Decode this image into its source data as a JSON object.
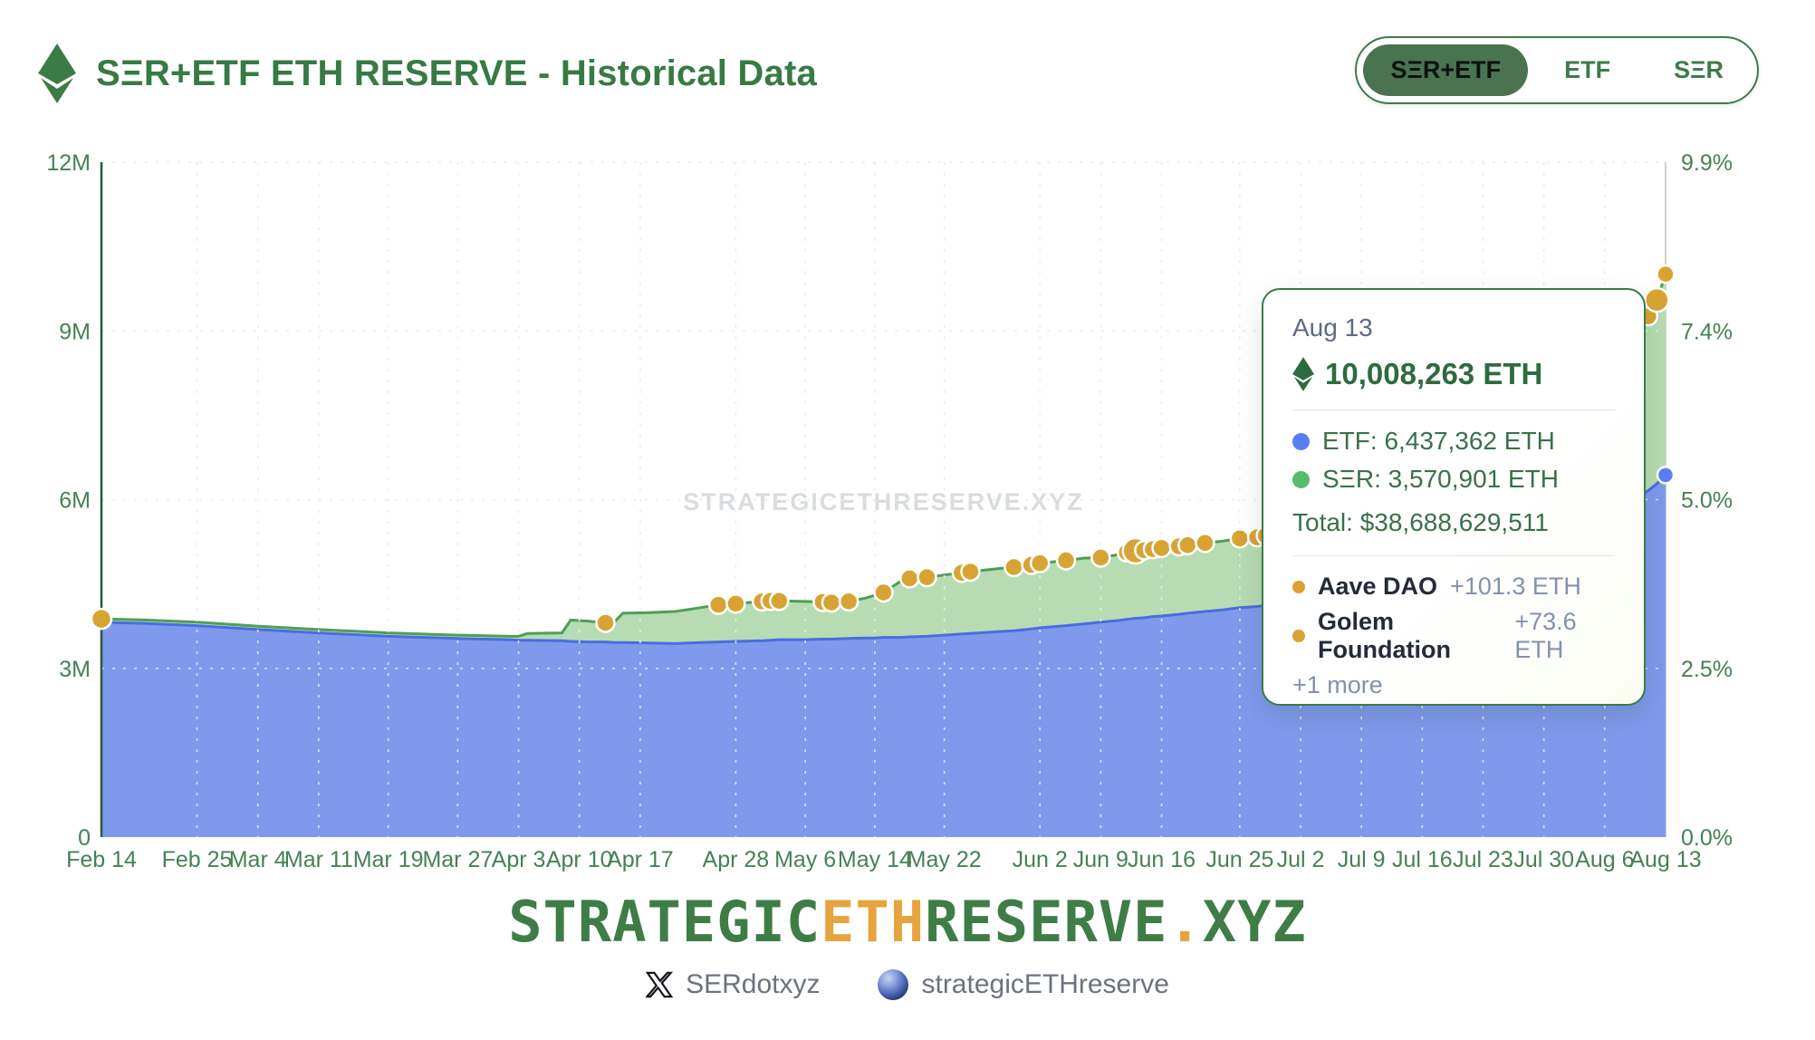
{
  "header": {
    "title": "SΞR+ETF ETH RESERVE - Historical Data",
    "toggle": {
      "options": [
        {
          "label": "SΞR+ETF",
          "selected": true
        },
        {
          "label": "ETF",
          "selected": false
        },
        {
          "label": "SΞR",
          "selected": false
        }
      ]
    }
  },
  "chart_data": {
    "type": "area",
    "stacked": true,
    "title": "SΞR+ETF ETH RESERVE - Historical Data",
    "watermark": "STRATEGICETHRESERVE.XYZ",
    "y_left_ticks": [
      {
        "value": 0,
        "label": "0"
      },
      {
        "value": 3,
        "label": "3M"
      },
      {
        "value": 6,
        "label": "6M"
      },
      {
        "value": 9,
        "label": "9M"
      },
      {
        "value": 12,
        "label": "12M"
      }
    ],
    "y_right_ticks": [
      {
        "value": 0,
        "label": "0.0%"
      },
      {
        "value": 3,
        "label": "2.5%"
      },
      {
        "value": 6,
        "label": "5.0%"
      },
      {
        "value": 9,
        "label": "7.4%"
      },
      {
        "value": 12,
        "label": "9.9%"
      }
    ],
    "ylim_millions": [
      0,
      12
    ],
    "x_ticks": [
      {
        "day": 0,
        "label": "Feb 14"
      },
      {
        "day": 11,
        "label": "Feb 25"
      },
      {
        "day": 18,
        "label": "Mar 4"
      },
      {
        "day": 25,
        "label": "Mar 11"
      },
      {
        "day": 33,
        "label": "Mar 19"
      },
      {
        "day": 41,
        "label": "Mar 27"
      },
      {
        "day": 48,
        "label": "Apr 3"
      },
      {
        "day": 55,
        "label": "Apr 10"
      },
      {
        "day": 62,
        "label": "Apr 17"
      },
      {
        "day": 73,
        "label": "Apr 28"
      },
      {
        "day": 81,
        "label": "May 6"
      },
      {
        "day": 89,
        "label": "May 14"
      },
      {
        "day": 97,
        "label": "May 22"
      },
      {
        "day": 108,
        "label": "Jun 2"
      },
      {
        "day": 115,
        "label": "Jun 9"
      },
      {
        "day": 122,
        "label": "Jun 16"
      },
      {
        "day": 131,
        "label": "Jun 25"
      },
      {
        "day": 138,
        "label": "Jul 2"
      },
      {
        "day": 145,
        "label": "Jul 9"
      },
      {
        "day": 152,
        "label": "Jul 16"
      },
      {
        "day": 159,
        "label": "Jul 23"
      },
      {
        "day": 166,
        "label": "Jul 30"
      },
      {
        "day": 173,
        "label": "Aug 6"
      },
      {
        "day": 180,
        "label": "Aug 13"
      }
    ],
    "series": [
      {
        "name": "ETF",
        "fill": "#7f9aec",
        "line": "#4a6de0",
        "marker": "#5b7df2"
      },
      {
        "name": "SΞR",
        "fill": "#b7dcb3",
        "line": "#4f9e58",
        "marker": "#55bd6c"
      }
    ],
    "event_marker_color": "#d7a433",
    "points": [
      {
        "day": 0,
        "etf": 3.82,
        "ser": 0.06,
        "dot": true,
        "r": 11
      },
      {
        "day": 5,
        "etf": 3.8,
        "ser": 0.06
      },
      {
        "day": 11,
        "etf": 3.76,
        "ser": 0.06
      },
      {
        "day": 18,
        "etf": 3.69,
        "ser": 0.06
      },
      {
        "day": 25,
        "etf": 3.63,
        "ser": 0.06
      },
      {
        "day": 33,
        "etf": 3.57,
        "ser": 0.06
      },
      {
        "day": 41,
        "etf": 3.53,
        "ser": 0.06
      },
      {
        "day": 47,
        "etf": 3.51,
        "ser": 0.06
      },
      {
        "day": 48,
        "etf": 3.5,
        "ser": 0.07
      },
      {
        "day": 49,
        "etf": 3.5,
        "ser": 0.12
      },
      {
        "day": 53,
        "etf": 3.49,
        "ser": 0.14
      },
      {
        "day": 54,
        "etf": 3.48,
        "ser": 0.38
      },
      {
        "day": 56,
        "etf": 3.47,
        "ser": 0.37
      },
      {
        "day": 58,
        "etf": 3.47,
        "ser": 0.34,
        "dot": true
      },
      {
        "day": 59,
        "etf": 3.46,
        "ser": 0.36
      },
      {
        "day": 60,
        "etf": 3.46,
        "ser": 0.52
      },
      {
        "day": 63,
        "etf": 3.45,
        "ser": 0.54
      },
      {
        "day": 66,
        "etf": 3.44,
        "ser": 0.57
      },
      {
        "day": 69,
        "etf": 3.46,
        "ser": 0.62
      },
      {
        "day": 71,
        "etf": 3.47,
        "ser": 0.66,
        "dot": true
      },
      {
        "day": 73,
        "etf": 3.48,
        "ser": 0.67,
        "dot": true
      },
      {
        "day": 76,
        "etf": 3.49,
        "ser": 0.7,
        "dot": true
      },
      {
        "day": 77,
        "etf": 3.5,
        "ser": 0.7,
        "dot": true
      },
      {
        "day": 78,
        "etf": 3.51,
        "ser": 0.69,
        "dot": true
      },
      {
        "day": 81,
        "etf": 3.51,
        "ser": 0.68
      },
      {
        "day": 83,
        "etf": 3.52,
        "ser": 0.66,
        "dot": true
      },
      {
        "day": 84,
        "etf": 3.52,
        "ser": 0.65,
        "dot": true
      },
      {
        "day": 86,
        "etf": 3.53,
        "ser": 0.66,
        "dot": true
      },
      {
        "day": 88,
        "etf": 3.54,
        "ser": 0.71
      },
      {
        "day": 89,
        "etf": 3.54,
        "ser": 0.76
      },
      {
        "day": 90,
        "etf": 3.55,
        "ser": 0.8,
        "dot": true
      },
      {
        "day": 92,
        "etf": 3.55,
        "ser": 1.0
      },
      {
        "day": 93,
        "etf": 3.56,
        "ser": 1.04,
        "dot": true
      },
      {
        "day": 95,
        "etf": 3.57,
        "ser": 1.05,
        "dot": true
      },
      {
        "day": 97,
        "etf": 3.59,
        "ser": 1.07
      },
      {
        "day": 99,
        "etf": 3.61,
        "ser": 1.09,
        "dot": true
      },
      {
        "day": 100,
        "etf": 3.62,
        "ser": 1.1,
        "dot": true
      },
      {
        "day": 103,
        "etf": 3.65,
        "ser": 1.12
      },
      {
        "day": 105,
        "etf": 3.67,
        "ser": 1.13,
        "dot": true
      },
      {
        "day": 107,
        "etf": 3.7,
        "ser": 1.14,
        "dot": true
      },
      {
        "day": 108,
        "etf": 3.72,
        "ser": 1.15,
        "dot": true
      },
      {
        "day": 111,
        "etf": 3.76,
        "ser": 1.16,
        "dot": true
      },
      {
        "day": 113,
        "etf": 3.79,
        "ser": 1.17
      },
      {
        "day": 115,
        "etf": 3.82,
        "ser": 1.15,
        "dot": true
      },
      {
        "day": 117,
        "etf": 3.85,
        "ser": 1.17
      },
      {
        "day": 118,
        "etf": 3.87,
        "ser": 1.19,
        "dot": true
      },
      {
        "day": 119,
        "etf": 3.89,
        "ser": 1.2,
        "dot": true,
        "r": 14
      },
      {
        "day": 120,
        "etf": 3.9,
        "ser": 1.2,
        "dot": true
      },
      {
        "day": 121,
        "etf": 3.92,
        "ser": 1.2,
        "dot": true
      },
      {
        "day": 122,
        "etf": 3.93,
        "ser": 1.21,
        "dot": true
      },
      {
        "day": 124,
        "etf": 3.96,
        "ser": 1.21,
        "dot": true
      },
      {
        "day": 125,
        "etf": 3.98,
        "ser": 1.21,
        "dot": true
      },
      {
        "day": 127,
        "etf": 4.01,
        "ser": 1.22,
        "dot": true
      },
      {
        "day": 129,
        "etf": 4.04,
        "ser": 1.22
      },
      {
        "day": 131,
        "etf": 4.08,
        "ser": 1.23,
        "dot": true
      },
      {
        "day": 133,
        "etf": 4.1,
        "ser": 1.23,
        "dot": true
      },
      {
        "day": 134,
        "etf": 4.12,
        "ser": 1.24,
        "dot": true
      },
      {
        "day": 136,
        "etf": 4.15,
        "ser": 1.24
      },
      {
        "day": 138,
        "etf": 4.18,
        "ser": 1.25,
        "dot": true
      },
      {
        "day": 140,
        "etf": 4.21,
        "ser": 1.26,
        "dot": true
      },
      {
        "day": 143,
        "etf": 4.26,
        "ser": 1.28
      },
      {
        "day": 145,
        "etf": 4.31,
        "ser": 1.31
      },
      {
        "day": 148,
        "etf": 4.39,
        "ser": 1.36
      },
      {
        "day": 152,
        "etf": 4.49,
        "ser": 1.44
      },
      {
        "day": 155,
        "etf": 4.61,
        "ser": 1.55
      },
      {
        "day": 159,
        "etf": 4.79,
        "ser": 1.72
      },
      {
        "day": 162,
        "etf": 4.96,
        "ser": 1.9
      },
      {
        "day": 166,
        "etf": 5.19,
        "ser": 2.12
      },
      {
        "day": 169,
        "etf": 5.43,
        "ser": 2.33
      },
      {
        "day": 173,
        "etf": 5.71,
        "ser": 2.6
      },
      {
        "day": 176,
        "etf": 5.96,
        "ser": 2.86
      },
      {
        "day": 178,
        "etf": 6.16,
        "ser": 3.1,
        "dot": true
      },
      {
        "day": 179,
        "etf": 6.28,
        "ser": 3.27,
        "dot": true,
        "r": 13
      },
      {
        "day": 180,
        "etf": 6.437362,
        "ser": 3.570901,
        "dot": true,
        "r": 9.5,
        "etf_dot": true
      }
    ],
    "crosshair_day": 180,
    "grid": true,
    "legend_position": "tooltip"
  },
  "tooltip": {
    "date": "Aug 13",
    "total_eth": "10,008,263 ETH",
    "rows": [
      {
        "label": "ETF: 6,437,362 ETH"
      },
      {
        "label": "SΞR: 3,570,901 ETH"
      }
    ],
    "total_usd": "Total: $38,688,629,511",
    "events": [
      {
        "name": "Aave DAO",
        "delta": "+101.3 ETH"
      },
      {
        "name": "Golem Foundation",
        "delta": "+73.6 ETH"
      }
    ],
    "more": "+1 more"
  },
  "footer": {
    "logo_parts": [
      {
        "text": "STRATEGIC",
        "color": "green"
      },
      {
        "text": "ETH",
        "color": "orange"
      },
      {
        "text": "RESERVE",
        "color": "green"
      },
      {
        "text": ".",
        "color": "orange"
      },
      {
        "text": "XYZ",
        "color": "green"
      }
    ],
    "links": [
      {
        "icon": "x-logo",
        "label": "SERdotxyz"
      },
      {
        "icon": "globe",
        "label": "strategicETHreserve"
      }
    ]
  },
  "colors": {
    "accent_green": "#3d7b4c",
    "title_green": "#377a43",
    "etf_blue_fill": "#7f9aec",
    "ser_green_fill": "#b7dcb3",
    "event_gold": "#d7a433",
    "logo_orange": "#e6a43e"
  }
}
